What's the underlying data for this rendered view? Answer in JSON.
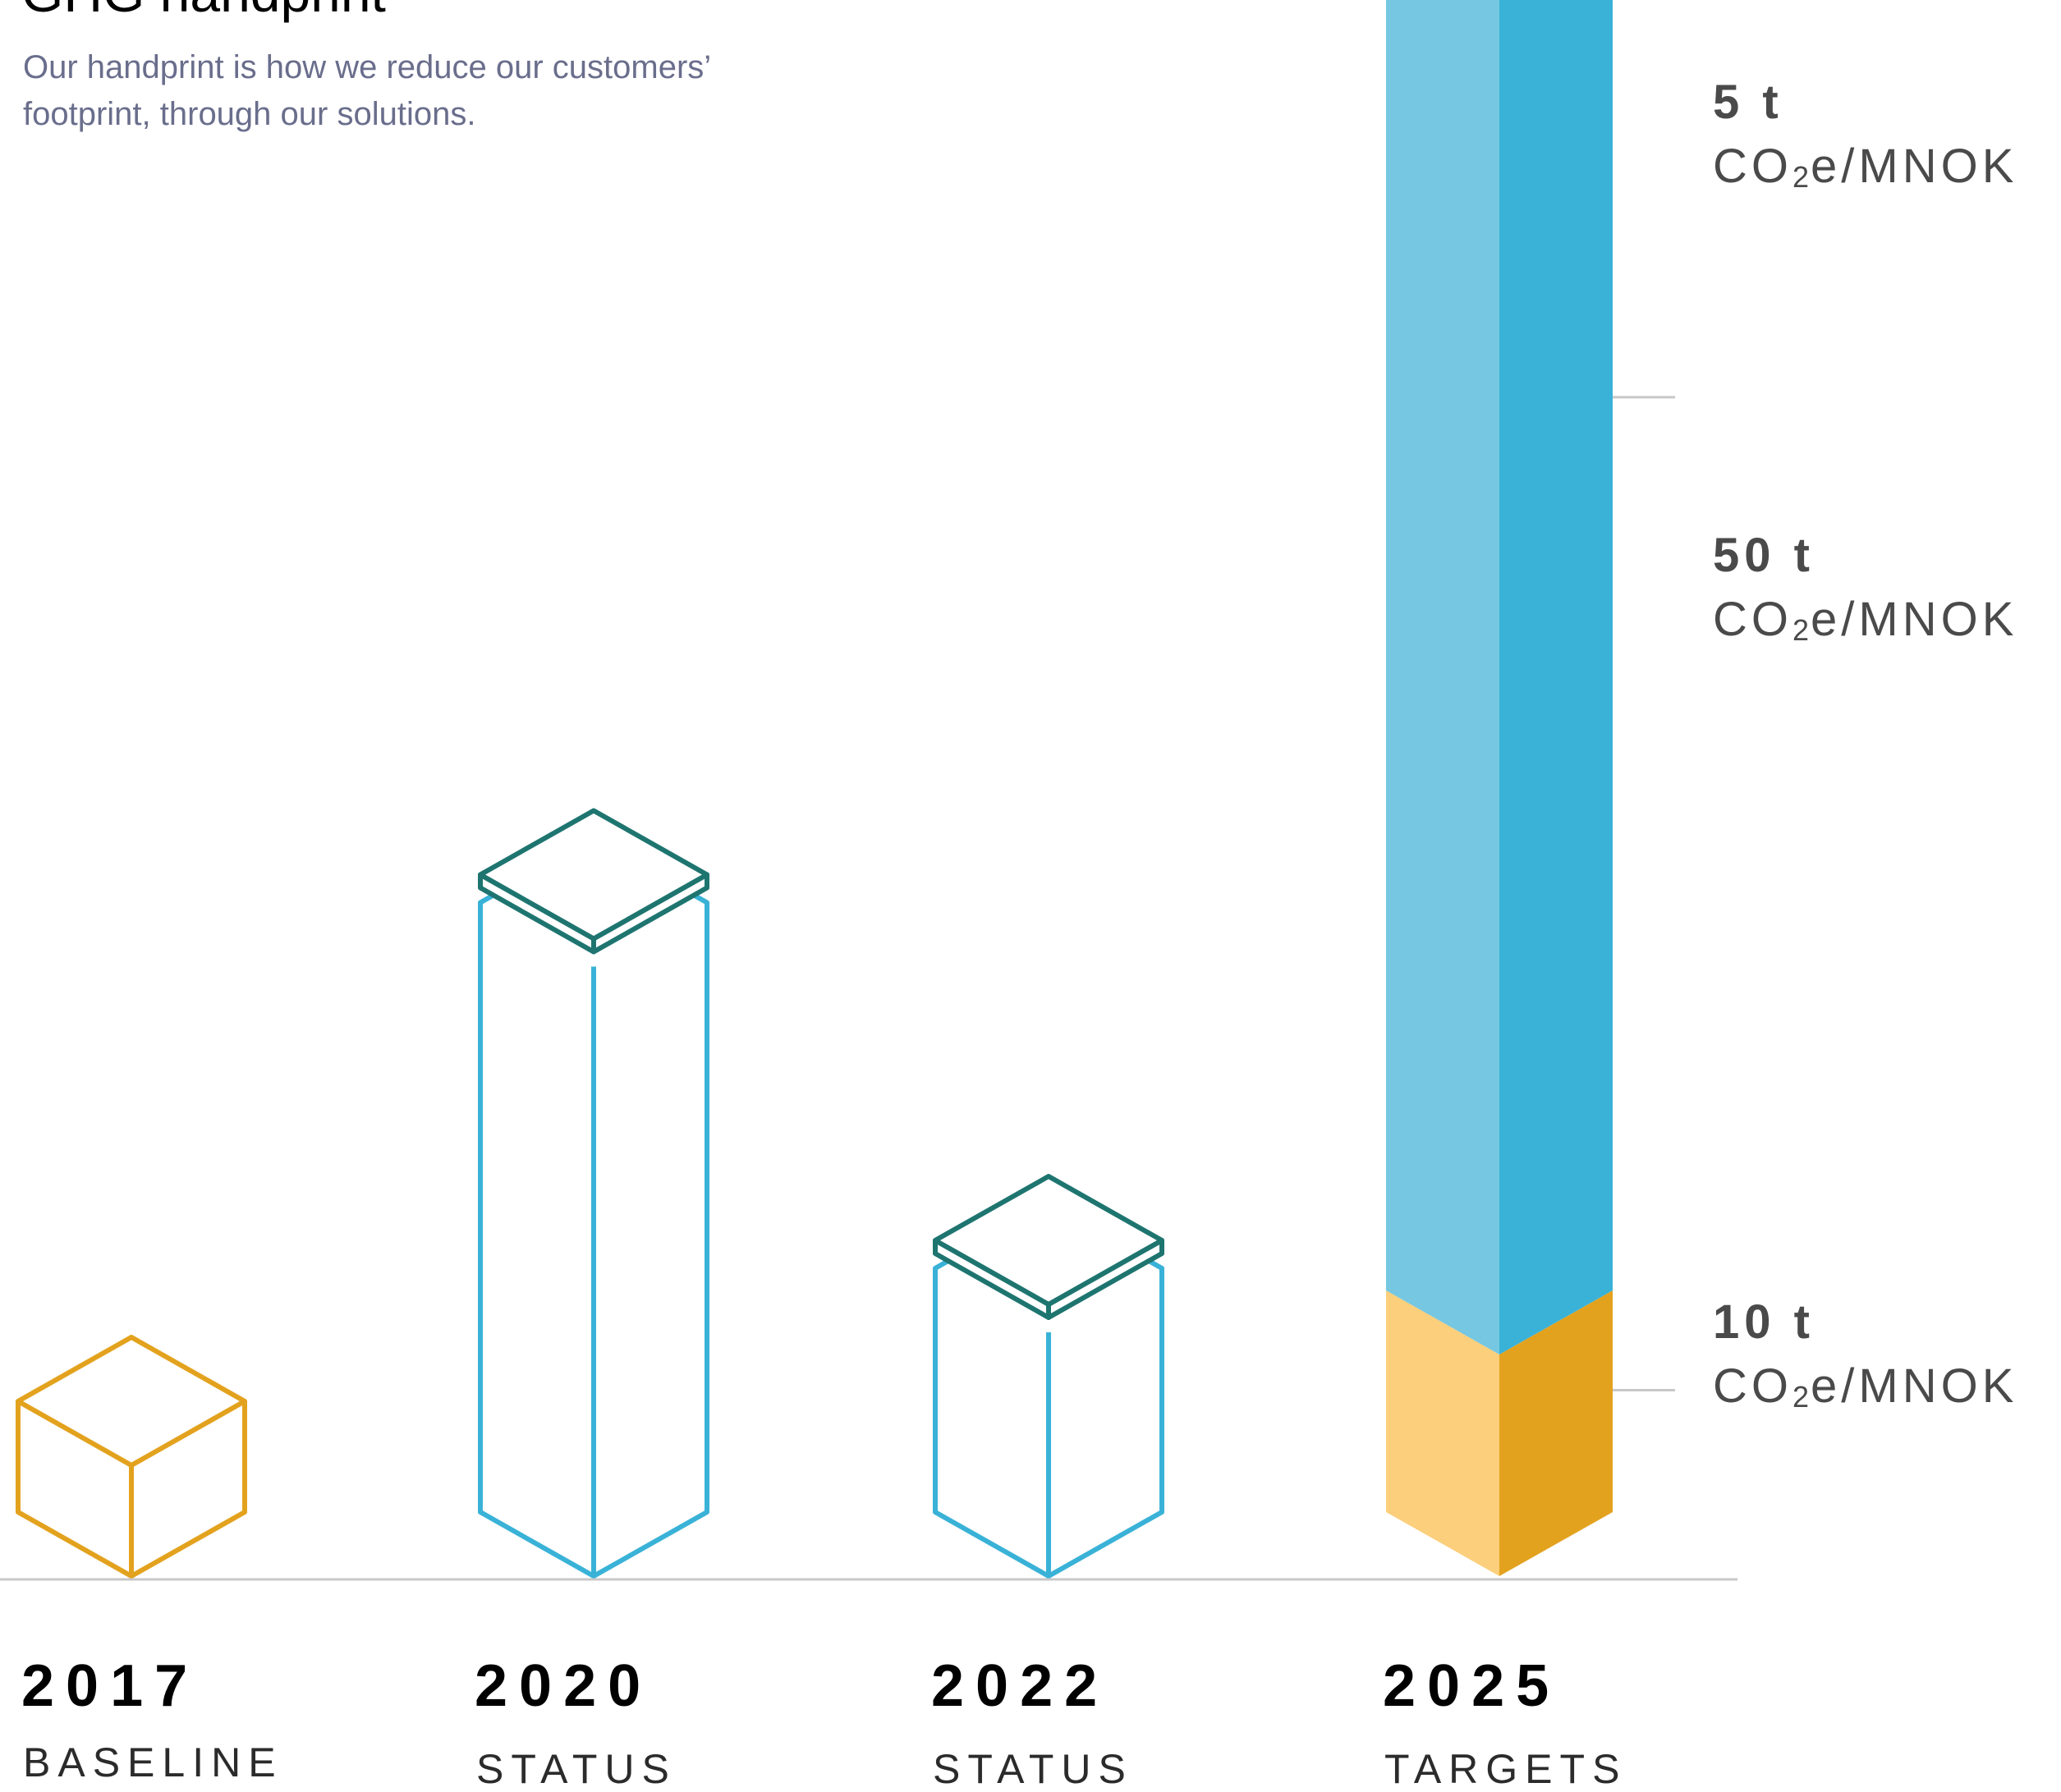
{
  "header": {
    "title": "GHG handprint",
    "subtitle": "Our handprint is how we reduce our customers’ footprint, through our solutions."
  },
  "colors": {
    "baseline": "#e3a21e",
    "baseline_light": "#fbcf7c",
    "status": "#3ab2d7",
    "status_light": "#76c7e1",
    "top": "#1e7570",
    "top_dark": "#035a58",
    "axis": "#c8c8c8"
  },
  "chart_data": {
    "type": "bar",
    "title": "GHG handprint",
    "categories": [
      "2017",
      "2020",
      "2022",
      "2025"
    ],
    "category_labels": [
      "BASELINE",
      "STATUS",
      "STATUS",
      "TARGETS"
    ],
    "style": "isometric-stacked",
    "series": [
      {
        "name": "",
        "values": [
          1,
          5.5,
          2.2,
          2
        ]
      },
      {
        "name": "",
        "values": [
          0,
          0,
          0,
          13
        ]
      },
      {
        "name": "",
        "values": [
          0,
          0.15,
          0.15,
          1.5
        ]
      }
    ],
    "annotations": [
      {
        "value": "5 t",
        "unit_main": "CO",
        "unit_sub": "2",
        "unit_rest": "e/MNOK"
      },
      {
        "value": "50 t",
        "unit_main": "CO",
        "unit_sub": "2",
        "unit_rest": "e/MNOK"
      },
      {
        "value": "10 t",
        "unit_main": "CO",
        "unit_sub": "2",
        "unit_rest": "e/MNOK"
      }
    ],
    "grid": false,
    "legend": "none"
  }
}
